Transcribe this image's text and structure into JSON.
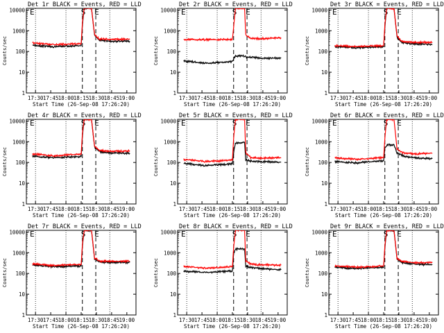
{
  "figure": {
    "start_label": "Start Time (26-Sep-08 17:26:20)",
    "ylabel": "Counts/sec",
    "colors": {
      "events": "#000000",
      "lld": "#ff0000",
      "axes": "#000000"
    }
  },
  "chart_data": [
    {
      "type": "line",
      "title": "Det 1r BLACK = Events, RED = LLD",
      "xlabel": "Start Time (26-Sep-08 17:26:20)",
      "ylabel": "Counts/sec",
      "x_ticks": [
        "17:30",
        "17:45",
        "18:00",
        "18:15",
        "18:30",
        "18:45",
        "19:00"
      ],
      "y_ticks": [
        "1",
        "10",
        "100",
        "1000",
        "10000"
      ],
      "ylim": [
        1,
        12000
      ],
      "y_scale": "log",
      "markers": [
        "E",
        "S",
        "E"
      ],
      "series": [
        {
          "values": [
            [
              17.45,
              200
            ],
            [
              17.8,
              170
            ],
            [
              18.25,
              190
            ],
            [
              18.27,
              1800
            ],
            [
              18.3,
              12000
            ],
            [
              18.42,
              12000
            ],
            [
              18.47,
              600
            ],
            [
              18.55,
              350
            ],
            [
              18.75,
              310
            ],
            [
              19.05,
              310
            ]
          ]
        },
        {
          "values": [
            [
              17.45,
              260
            ],
            [
              17.8,
              210
            ],
            [
              18.25,
              240
            ],
            [
              18.27,
              2500
            ],
            [
              18.3,
              12000
            ],
            [
              18.42,
              12000
            ],
            [
              18.47,
              650
            ],
            [
              18.55,
              400
            ],
            [
              18.75,
              380
            ],
            [
              19.05,
              390
            ]
          ]
        }
      ]
    },
    {
      "type": "line",
      "title": "Det 2r BLACK = Events, RED = LLD",
      "xlabel": "Start Time (26-Sep-08 17:26:20)",
      "ylabel": "Counts/sec",
      "x_ticks": [
        "17:30",
        "17:45",
        "18:00",
        "18:15",
        "18:30",
        "18:45",
        "19:00"
      ],
      "y_ticks": [
        "1",
        "10",
        "100",
        "1000",
        "10000"
      ],
      "ylim": [
        1,
        12000
      ],
      "y_scale": "log",
      "markers": [
        "E",
        "S",
        "E"
      ],
      "series": [
        {
          "values": [
            [
              17.45,
              35
            ],
            [
              17.8,
              27
            ],
            [
              18.25,
              32
            ],
            [
              18.27,
              45
            ],
            [
              18.3,
              60
            ],
            [
              18.45,
              60
            ],
            [
              18.47,
              55
            ],
            [
              18.75,
              48
            ],
            [
              19.05,
              48
            ]
          ]
        },
        {
          "values": [
            [
              17.45,
              380
            ],
            [
              17.8,
              370
            ],
            [
              18.25,
              380
            ],
            [
              18.27,
              1500
            ],
            [
              18.3,
              12000
            ],
            [
              18.45,
              12000
            ],
            [
              18.47,
              600
            ],
            [
              18.55,
              420
            ],
            [
              18.75,
              420
            ],
            [
              19.05,
              460
            ]
          ]
        }
      ]
    },
    {
      "type": "line",
      "title": "Det 3r BLACK = Events, RED = LLD",
      "xlabel": "Start Time (26-Sep-08 17:26:20)",
      "ylabel": "Counts/sec",
      "x_ticks": [
        "17:30",
        "17:45",
        "18:00",
        "18:15",
        "18:30",
        "18:45",
        "19:00"
      ],
      "y_ticks": [
        "1",
        "10",
        "100",
        "1000",
        "10000"
      ],
      "ylim": [
        1,
        12000
      ],
      "y_scale": "log",
      "markers": [
        "E",
        "S",
        "E"
      ],
      "series": [
        {
          "values": [
            [
              17.45,
              170
            ],
            [
              17.8,
              150
            ],
            [
              18.25,
              170
            ],
            [
              18.27,
              1500
            ],
            [
              18.3,
              12000
            ],
            [
              18.42,
              12000
            ],
            [
              18.47,
              500
            ],
            [
              18.55,
              270
            ],
            [
              18.75,
              230
            ],
            [
              19.05,
              220
            ]
          ]
        },
        {
          "values": [
            [
              17.45,
              190
            ],
            [
              17.8,
              170
            ],
            [
              18.25,
              190
            ],
            [
              18.27,
              2000
            ],
            [
              18.3,
              12000
            ],
            [
              18.42,
              12000
            ],
            [
              18.47,
              550
            ],
            [
              18.55,
              300
            ],
            [
              18.75,
              270
            ],
            [
              19.05,
              280
            ]
          ]
        }
      ]
    },
    {
      "type": "line",
      "title": "Det 4r BLACK = Events, RED = LLD",
      "xlabel": "Start Time (26-Sep-08 17:26:20)",
      "ylabel": "Counts/sec",
      "x_ticks": [
        "17:30",
        "17:45",
        "18:00",
        "18:15",
        "18:30",
        "18:45",
        "19:00"
      ],
      "y_ticks": [
        "1",
        "10",
        "100",
        "1000",
        "10000"
      ],
      "ylim": [
        1,
        12000
      ],
      "y_scale": "log",
      "markers": [
        "E",
        "S",
        "E"
      ],
      "series": [
        {
          "values": [
            [
              17.45,
              200
            ],
            [
              17.8,
              170
            ],
            [
              18.25,
              195
            ],
            [
              18.27,
              1800
            ],
            [
              18.3,
              12000
            ],
            [
              18.42,
              12000
            ],
            [
              18.47,
              550
            ],
            [
              18.55,
              330
            ],
            [
              18.75,
              290
            ],
            [
              19.05,
              280
            ]
          ]
        },
        {
          "values": [
            [
              17.45,
              260
            ],
            [
              17.8,
              210
            ],
            [
              18.25,
              250
            ],
            [
              18.27,
              2500
            ],
            [
              18.3,
              12000
            ],
            [
              18.42,
              12000
            ],
            [
              18.47,
              600
            ],
            [
              18.55,
              380
            ],
            [
              18.75,
              350
            ],
            [
              19.05,
              360
            ]
          ]
        }
      ]
    },
    {
      "type": "line",
      "title": "Det 5r BLACK = Events, RED = LLD",
      "xlabel": "Start Time (26-Sep-08 17:26:20)",
      "ylabel": "Counts/sec",
      "x_ticks": [
        "17:30",
        "17:45",
        "18:00",
        "18:15",
        "18:30",
        "18:45",
        "19:00"
      ],
      "y_ticks": [
        "1",
        "10",
        "100",
        "1000",
        "10000"
      ],
      "ylim": [
        1,
        12000
      ],
      "y_scale": "log",
      "markers": [
        "E",
        "S",
        "E"
      ],
      "series": [
        {
          "values": [
            [
              17.45,
              90
            ],
            [
              17.8,
              70
            ],
            [
              18.25,
              85
            ],
            [
              18.27,
              300
            ],
            [
              18.3,
              900
            ],
            [
              18.45,
              900
            ],
            [
              18.47,
              130
            ],
            [
              18.6,
              110
            ],
            [
              18.75,
              110
            ],
            [
              19.05,
              105
            ]
          ]
        },
        {
          "values": [
            [
              17.45,
              140
            ],
            [
              17.8,
              110
            ],
            [
              18.25,
              130
            ],
            [
              18.27,
              1500
            ],
            [
              18.3,
              12000
            ],
            [
              18.45,
              12000
            ],
            [
              18.47,
              300
            ],
            [
              18.55,
              170
            ],
            [
              18.75,
              160
            ],
            [
              19.05,
              170
            ]
          ]
        }
      ]
    },
    {
      "type": "line",
      "title": "Det 6r BLACK = Events, RED = LLD",
      "xlabel": "Start Time (26-Sep-08 17:26:20)",
      "ylabel": "Counts/sec",
      "x_ticks": [
        "17:30",
        "17:45",
        "18:00",
        "18:15",
        "18:30",
        "18:45",
        "19:00"
      ],
      "y_ticks": [
        "1",
        "10",
        "100",
        "1000",
        "10000"
      ],
      "ylim": [
        1,
        12000
      ],
      "y_scale": "log",
      "markers": [
        "E",
        "S",
        "E"
      ],
      "series": [
        {
          "values": [
            [
              17.45,
              110
            ],
            [
              17.8,
              95
            ],
            [
              18.25,
              120
            ],
            [
              18.27,
              500
            ],
            [
              18.3,
              700
            ],
            [
              18.42,
              700
            ],
            [
              18.47,
              280
            ],
            [
              18.6,
              200
            ],
            [
              18.75,
              170
            ],
            [
              19.05,
              150
            ]
          ]
        },
        {
          "values": [
            [
              17.45,
              170
            ],
            [
              17.8,
              140
            ],
            [
              18.25,
              170
            ],
            [
              18.27,
              1500
            ],
            [
              18.3,
              12000
            ],
            [
              18.42,
              12000
            ],
            [
              18.47,
              450
            ],
            [
              18.55,
              300
            ],
            [
              18.75,
              260
            ],
            [
              19.05,
              280
            ]
          ]
        }
      ]
    },
    {
      "type": "line",
      "title": "Det 7r BLACK = Events, RED = LLD",
      "xlabel": "Start Time (26-Sep-08 17:26:20)",
      "ylabel": "Counts/sec",
      "x_ticks": [
        "17:30",
        "17:45",
        "18:00",
        "18:15",
        "18:30",
        "18:45",
        "19:00"
      ],
      "y_ticks": [
        "1",
        "10",
        "100",
        "1000",
        "10000"
      ],
      "ylim": [
        1,
        12000
      ],
      "y_scale": "log",
      "markers": [
        "E",
        "S",
        "E"
      ],
      "series": [
        {
          "values": [
            [
              17.45,
              250
            ],
            [
              17.8,
              210
            ],
            [
              18.25,
              230
            ],
            [
              18.27,
              2000
            ],
            [
              18.3,
              12000
            ],
            [
              18.42,
              12000
            ],
            [
              18.47,
              500
            ],
            [
              18.55,
              360
            ],
            [
              18.75,
              340
            ],
            [
              19.05,
              340
            ]
          ]
        },
        {
          "values": [
            [
              17.45,
              290
            ],
            [
              17.8,
              240
            ],
            [
              18.25,
              270
            ],
            [
              18.27,
              2600
            ],
            [
              18.3,
              12000
            ],
            [
              18.42,
              12000
            ],
            [
              18.47,
              560
            ],
            [
              18.55,
              400
            ],
            [
              18.75,
              380
            ],
            [
              19.05,
              390
            ]
          ]
        }
      ]
    },
    {
      "type": "line",
      "title": "Det 8r BLACK = Events, RED = LLD",
      "xlabel": "Start Time (26-Sep-08 17:26:20)",
      "ylabel": "Counts/sec",
      "x_ticks": [
        "17:30",
        "17:45",
        "18:00",
        "18:15",
        "18:30",
        "18:45",
        "19:00"
      ],
      "y_ticks": [
        "1",
        "10",
        "100",
        "1000",
        "10000"
      ],
      "ylim": [
        1,
        12000
      ],
      "y_scale": "log",
      "markers": [
        "E",
        "S",
        "E"
      ],
      "series": [
        {
          "values": [
            [
              17.45,
              130
            ],
            [
              17.8,
              110
            ],
            [
              18.25,
              130
            ],
            [
              18.27,
              900
            ],
            [
              18.3,
              1500
            ],
            [
              18.45,
              1500
            ],
            [
              18.47,
              220
            ],
            [
              18.6,
              190
            ],
            [
              18.75,
              170
            ],
            [
              19.05,
              150
            ]
          ]
        },
        {
          "values": [
            [
              17.45,
              220
            ],
            [
              17.8,
              180
            ],
            [
              18.25,
              210
            ],
            [
              18.27,
              1800
            ],
            [
              18.3,
              12000
            ],
            [
              18.45,
              12000
            ],
            [
              18.47,
              400
            ],
            [
              18.55,
              280
            ],
            [
              18.75,
              260
            ],
            [
              19.05,
              250
            ]
          ]
        }
      ]
    },
    {
      "type": "line",
      "title": "Det 9r BLACK = Events, RED = LLD",
      "xlabel": "Start Time (26-Sep-08 17:26:20)",
      "ylabel": "Counts/sec",
      "x_ticks": [
        "17:30",
        "17:45",
        "18:00",
        "18:15",
        "18:30",
        "18:45",
        "19:00"
      ],
      "y_ticks": [
        "1",
        "10",
        "100",
        "1000",
        "10000"
      ],
      "ylim": [
        1,
        12000
      ],
      "y_scale": "log",
      "markers": [
        "E",
        "S",
        "E"
      ],
      "series": [
        {
          "values": [
            [
              17.45,
              200
            ],
            [
              17.8,
              170
            ],
            [
              18.25,
              200
            ],
            [
              18.27,
              1700
            ],
            [
              18.3,
              12000
            ],
            [
              18.42,
              12000
            ],
            [
              18.47,
              500
            ],
            [
              18.55,
              330
            ],
            [
              18.75,
              280
            ],
            [
              19.05,
              260
            ]
          ]
        },
        {
          "values": [
            [
              17.45,
              230
            ],
            [
              17.8,
              200
            ],
            [
              18.25,
              230
            ],
            [
              18.27,
              2200
            ],
            [
              18.3,
              12000
            ],
            [
              18.42,
              12000
            ],
            [
              18.47,
              550
            ],
            [
              18.55,
              380
            ],
            [
              18.75,
              330
            ],
            [
              19.05,
              330
            ]
          ]
        }
      ]
    }
  ]
}
